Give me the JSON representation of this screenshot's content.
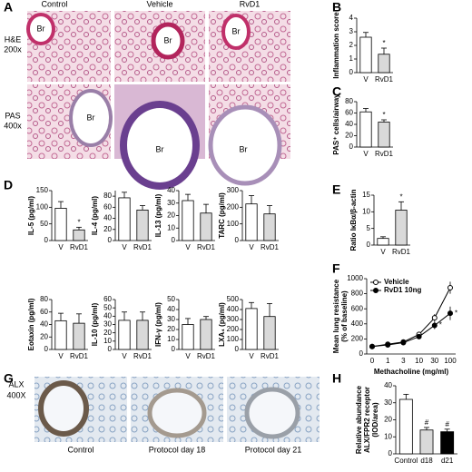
{
  "panel_labels": [
    "A",
    "B",
    "C",
    "D",
    "E",
    "F",
    "G",
    "H"
  ],
  "figure_a": {
    "columns": [
      "Control",
      "Vehicle",
      "RvD1"
    ],
    "rows": [
      [
        "H&E",
        "200x"
      ],
      [
        "PAS",
        "400x"
      ]
    ],
    "br_labels": [
      "Br",
      "Br",
      "Br",
      "Br",
      "Br",
      "Br"
    ]
  },
  "figure_g": {
    "row": [
      "ALX",
      "400X"
    ],
    "columns": [
      "Control",
      "Protocol day 18",
      "Protocol day 21"
    ]
  },
  "chart_data": [
    {
      "type": "bar",
      "ylabel": "Inflammation score",
      "categories": [
        "V",
        "RvD1"
      ],
      "values": [
        2.6,
        1.35
      ],
      "errors": [
        0.35,
        0.45
      ],
      "value_markers": [
        null,
        "*"
      ],
      "colors": [
        "#ffffff",
        "#d9d9d9"
      ],
      "ylim": [
        0,
        4
      ],
      "yticks": [
        0,
        1,
        2,
        3,
        4
      ]
    },
    {
      "type": "bar",
      "ylabel": "PAS⁺ cells/airway",
      "categories": [
        "V",
        "RvD1"
      ],
      "values": [
        62,
        44
      ],
      "errors": [
        6,
        4
      ],
      "value_markers": [
        null,
        "*"
      ],
      "colors": [
        "#ffffff",
        "#d9d9d9"
      ],
      "ylim": [
        0,
        80
      ],
      "yticks": [
        0,
        20,
        40,
        60,
        80
      ]
    },
    {
      "type": "bar",
      "ylabel": "IL-5 (pg/ml)",
      "categories": [
        "V",
        "RvD1"
      ],
      "values": [
        97,
        32
      ],
      "errors": [
        20,
        8
      ],
      "value_markers": [
        null,
        "*"
      ],
      "colors": [
        "#ffffff",
        "#d9d9d9"
      ],
      "ylim": [
        0,
        150
      ],
      "yticks": [
        0,
        50,
        100,
        150
      ]
    },
    {
      "type": "bar",
      "ylabel": "IL-4 (pg/ml)",
      "categories": [
        "V",
        "RvD1"
      ],
      "values": [
        77,
        55
      ],
      "errors": [
        10,
        8
      ],
      "colors": [
        "#ffffff",
        "#d9d9d9"
      ],
      "ylim": [
        0,
        90
      ],
      "yticks": [
        0,
        20,
        40,
        60,
        80
      ]
    },
    {
      "type": "bar",
      "ylabel": "IL-13 (pg/ml)",
      "categories": [
        "V",
        "RvD1"
      ],
      "values": [
        32,
        22
      ],
      "errors": [
        5,
        7
      ],
      "colors": [
        "#ffffff",
        "#d9d9d9"
      ],
      "ylim": [
        0,
        40
      ],
      "yticks": [
        0,
        10,
        20,
        30,
        40
      ]
    },
    {
      "type": "bar",
      "ylabel": "TARC (pg/ml)",
      "categories": [
        "V",
        "RvD1"
      ],
      "values": [
        220,
        160
      ],
      "errors": [
        50,
        50
      ],
      "colors": [
        "#ffffff",
        "#d9d9d9"
      ],
      "ylim": [
        0,
        300
      ],
      "yticks": [
        0,
        100,
        200,
        300
      ]
    },
    {
      "type": "bar",
      "ylabel": "Eotaxin (pg/ml)",
      "categories": [
        "V",
        "RvD1"
      ],
      "values": [
        46,
        42
      ],
      "errors": [
        12,
        15
      ],
      "colors": [
        "#ffffff",
        "#d9d9d9"
      ],
      "ylim": [
        0,
        80
      ],
      "yticks": [
        0,
        20,
        40,
        60,
        80
      ]
    },
    {
      "type": "bar",
      "ylabel": "IL-10 (pg/ml)",
      "categories": [
        "V",
        "RvD1"
      ],
      "values": [
        35,
        35
      ],
      "errors": [
        10,
        10
      ],
      "colors": [
        "#ffffff",
        "#d9d9d9"
      ],
      "ylim": [
        0,
        60
      ],
      "yticks": [
        0,
        10,
        20,
        30,
        40,
        50,
        60
      ]
    },
    {
      "type": "bar",
      "ylabel": "IFN-γ (pg/ml)",
      "categories": [
        "V",
        "RvD1"
      ],
      "values": [
        25,
        30
      ],
      "errors": [
        6,
        3
      ],
      "colors": [
        "#ffffff",
        "#d9d9d9"
      ],
      "ylim": [
        0,
        50
      ],
      "yticks": [
        0,
        10,
        20,
        30,
        40,
        50
      ]
    },
    {
      "type": "bar",
      "ylabel": "LXA₄ (pg/ml)",
      "categories": [
        "V",
        "RvD1"
      ],
      "values": [
        410,
        330
      ],
      "errors": [
        60,
        130
      ],
      "colors": [
        "#ffffff",
        "#d9d9d9"
      ],
      "ylim": [
        0,
        500
      ],
      "yticks": [
        0,
        100,
        200,
        300,
        400,
        500
      ]
    },
    {
      "type": "bar",
      "ylabel": "Ratio IκBα/β-actin",
      "categories": [
        "V",
        "RvD1"
      ],
      "values": [
        2,
        10.5
      ],
      "errors": [
        0.5,
        2.5
      ],
      "value_markers": [
        null,
        "*"
      ],
      "colors": [
        "#ffffff",
        "#d9d9d9"
      ],
      "ylim": [
        0,
        15
      ],
      "yticks": [
        0,
        5,
        10,
        15
      ]
    },
    {
      "type": "line",
      "ylabel": [
        "Mean lung resistance",
        "(% of baseline)"
      ],
      "xlabel": "Methacholine (mg/ml)",
      "categories": [
        "0",
        "1",
        "3",
        "10",
        "30",
        "100"
      ],
      "ylim": [
        0,
        1000
      ],
      "yticks": [
        0,
        200,
        400,
        600,
        800,
        1000
      ],
      "series": [
        {
          "name": "Vehicle",
          "color": "#000000",
          "marker_fill": "#ffffff",
          "values": [
            100,
            130,
            160,
            260,
            480,
            880
          ],
          "errors": [
            0,
            10,
            20,
            30,
            50,
            80
          ]
        },
        {
          "name": "RvD1 10ng",
          "color": "#000000",
          "marker_fill": "#000000",
          "values": [
            100,
            120,
            150,
            230,
            380,
            540
          ],
          "errors": [
            0,
            10,
            20,
            30,
            50,
            90
          ],
          "value_markers": [
            null,
            null,
            null,
            null,
            "*",
            "*"
          ]
        }
      ]
    },
    {
      "type": "bar",
      "ylabel": [
        "Relative abundance",
        "ALX/FPR2 receptor",
        "(IOD/area)"
      ],
      "categories": [
        "Control",
        "d18",
        "d21"
      ],
      "values": [
        32,
        14,
        13
      ],
      "errors": [
        3,
        1.5,
        1.5
      ],
      "value_markers": [
        null,
        "#",
        "#"
      ],
      "colors": [
        "#ffffff",
        "#d9d9d9",
        "#000000"
      ],
      "ylim": [
        0,
        40
      ],
      "yticks": [
        0,
        10,
        20,
        30,
        40
      ]
    }
  ]
}
